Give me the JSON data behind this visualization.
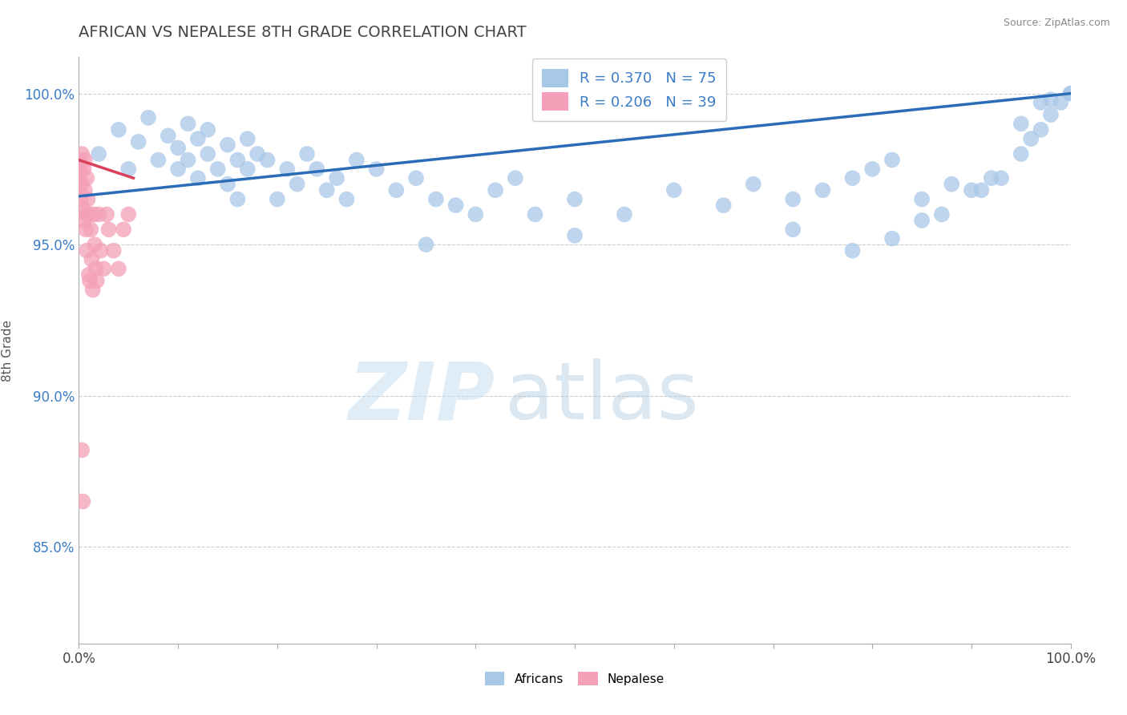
{
  "title": "AFRICAN VS NEPALESE 8TH GRADE CORRELATION CHART",
  "source": "Source: ZipAtlas.com",
  "ylabel": "8th Grade",
  "watermark": "ZIPatlas",
  "legend_r1": "R = 0.370   N = 75",
  "legend_r2": "R = 0.206   N = 39",
  "africans_label": "Africans",
  "nepalese_label": "Nepalese",
  "african_color": "#a8c8e8",
  "nepalese_color": "#f4a0b8",
  "african_line_color": "#2b6cb8",
  "nepalese_line_color": "#d9405a",
  "xlim": [
    0.0,
    1.0
  ],
  "ylim": [
    0.818,
    1.012
  ],
  "ytick_vals": [
    0.85,
    0.9,
    0.95,
    1.0
  ],
  "yticklabels": [
    "85.0%",
    "90.0%",
    "95.0%",
    "100.0%"
  ],
  "grid_color": "#cccccc",
  "background_color": "#ffffff",
  "title_color": "#444444",
  "title_fontsize": 14,
  "african_scatter_x": [
    0.02,
    0.04,
    0.05,
    0.06,
    0.07,
    0.08,
    0.09,
    0.1,
    0.1,
    0.11,
    0.11,
    0.12,
    0.12,
    0.13,
    0.13,
    0.14,
    0.15,
    0.15,
    0.16,
    0.16,
    0.17,
    0.17,
    0.18,
    0.19,
    0.2,
    0.21,
    0.22,
    0.23,
    0.24,
    0.25,
    0.26,
    0.27,
    0.28,
    0.3,
    0.32,
    0.34,
    0.36,
    0.38,
    0.4,
    0.42,
    0.44,
    0.46,
    0.5,
    0.55,
    0.6,
    0.65,
    0.68,
    0.72,
    0.75,
    0.78,
    0.8,
    0.82,
    0.85,
    0.87,
    0.9,
    0.92,
    0.95,
    0.96,
    0.97,
    0.98,
    0.99,
    1.0,
    1.0,
    0.98,
    0.97,
    0.95,
    0.93,
    0.91,
    0.88,
    0.85,
    0.82,
    0.78,
    0.72,
    0.5,
    0.35
  ],
  "african_scatter_y": [
    0.98,
    0.988,
    0.975,
    0.984,
    0.992,
    0.978,
    0.986,
    0.982,
    0.975,
    0.99,
    0.978,
    0.985,
    0.972,
    0.98,
    0.988,
    0.975,
    0.983,
    0.97,
    0.978,
    0.965,
    0.975,
    0.985,
    0.98,
    0.978,
    0.965,
    0.975,
    0.97,
    0.98,
    0.975,
    0.968,
    0.972,
    0.965,
    0.978,
    0.975,
    0.968,
    0.972,
    0.965,
    0.963,
    0.96,
    0.968,
    0.972,
    0.96,
    0.965,
    0.96,
    0.968,
    0.963,
    0.97,
    0.965,
    0.968,
    0.972,
    0.975,
    0.978,
    0.965,
    0.96,
    0.968,
    0.972,
    0.98,
    0.985,
    0.988,
    0.993,
    0.997,
    1.0,
    1.0,
    0.998,
    0.997,
    0.99,
    0.972,
    0.968,
    0.97,
    0.958,
    0.952,
    0.948,
    0.955,
    0.953,
    0.95
  ],
  "nepalese_scatter_x": [
    0.0,
    0.0,
    0.0,
    0.0,
    0.002,
    0.002,
    0.003,
    0.003,
    0.004,
    0.005,
    0.005,
    0.006,
    0.006,
    0.007,
    0.007,
    0.008,
    0.008,
    0.009,
    0.01,
    0.01,
    0.011,
    0.012,
    0.013,
    0.014,
    0.015,
    0.016,
    0.017,
    0.018,
    0.02,
    0.022,
    0.025,
    0.028,
    0.03,
    0.035,
    0.04,
    0.045,
    0.05,
    0.003,
    0.004
  ],
  "nepalese_scatter_y": [
    0.974,
    0.978,
    0.972,
    0.968,
    0.975,
    0.965,
    0.98,
    0.97,
    0.962,
    0.975,
    0.958,
    0.968,
    0.978,
    0.96,
    0.955,
    0.972,
    0.948,
    0.965,
    0.96,
    0.94,
    0.938,
    0.955,
    0.945,
    0.935,
    0.96,
    0.95,
    0.942,
    0.938,
    0.96,
    0.948,
    0.942,
    0.96,
    0.955,
    0.948,
    0.942,
    0.955,
    0.96,
    0.882,
    0.865
  ],
  "african_trend_x": [
    0.0,
    1.0
  ],
  "african_trend_y": [
    0.966,
    1.0
  ],
  "nepalese_trend_x": [
    0.0,
    0.055
  ],
  "nepalese_trend_y": [
    0.978,
    0.972
  ]
}
